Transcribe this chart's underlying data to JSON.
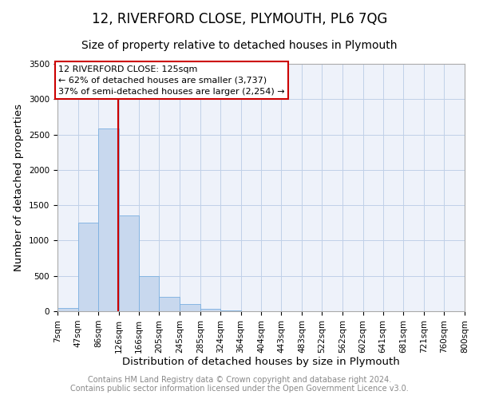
{
  "title": "12, RIVERFORD CLOSE, PLYMOUTH, PL6 7QG",
  "subtitle": "Size of property relative to detached houses in Plymouth",
  "xlabel": "Distribution of detached houses by size in Plymouth",
  "ylabel": "Number of detached properties",
  "bar_color": "#c8d8ee",
  "bar_edge_color": "#7aafe0",
  "grid_color": "#c0d0e8",
  "background_color": "#eef2fa",
  "property_size": 125,
  "vline_color": "#cc0000",
  "annotation_title": "12 RIVERFORD CLOSE: 125sqm",
  "annotation_line1": "← 62% of detached houses are smaller (3,737)",
  "annotation_line2": "37% of semi-detached houses are larger (2,254) →",
  "annotation_box_edgecolor": "#cc0000",
  "ylim": [
    0,
    3500
  ],
  "yticks": [
    0,
    500,
    1000,
    1500,
    2000,
    2500,
    3000,
    3500
  ],
  "bin_edges": [
    7,
    47,
    86,
    126,
    166,
    205,
    245,
    285,
    324,
    364,
    404,
    443,
    483,
    522,
    562,
    602,
    641,
    681,
    721,
    760,
    800
  ],
  "bin_heights": [
    50,
    1250,
    2580,
    1350,
    500,
    200,
    100,
    30,
    15,
    5,
    2,
    1,
    1,
    0,
    0,
    0,
    0,
    0,
    0,
    0
  ],
  "footer_line1": "Contains HM Land Registry data © Crown copyright and database right 2024.",
  "footer_line2": "Contains public sector information licensed under the Open Government Licence v3.0.",
  "footer_color": "#888888",
  "title_fontsize": 12,
  "subtitle_fontsize": 10,
  "axis_label_fontsize": 9.5,
  "tick_fontsize": 7.5,
  "annotation_fontsize": 8,
  "footer_fontsize": 7
}
